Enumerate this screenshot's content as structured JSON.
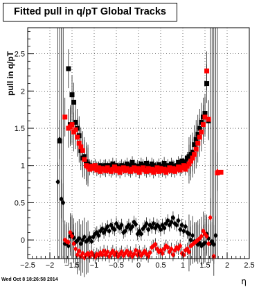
{
  "header": {
    "title": "Fitted pull in q/pT  Global Tracks",
    "datestamp": "Wed Oct  8 18:26:58 2014"
  },
  "chart_data": {
    "type": "scatter",
    "title": "Fitted pull in q/pT  Global Tracks",
    "xlabel": "η",
    "ylabel": "pull in q/pT",
    "xlim": [
      -2.5,
      2.5
    ],
    "ylim": [
      -0.25,
      2.85
    ],
    "xticks": [
      "−2.5",
      "−2",
      "−1.5",
      "−1",
      "−0.5",
      "0",
      "0.5",
      "1",
      "1.5",
      "2",
      "2.5"
    ],
    "yticks": [
      "0",
      "0.5",
      "1",
      "1.5",
      "2",
      "2.5"
    ],
    "grid": true,
    "colors": {
      "black": "#000000",
      "red": "#ff0000"
    },
    "series": [
      {
        "marker": "square",
        "color": "black",
        "x": [
          -1.58,
          -1.54,
          -1.5,
          -1.46,
          -1.42,
          -1.38,
          -1.34,
          -1.3,
          -1.26,
          -1.22,
          -1.18,
          -1.14,
          -1.1,
          -1.06,
          -1.02,
          -0.98,
          -0.94,
          -0.9,
          -0.86,
          -0.82,
          -0.78,
          -0.74,
          -0.7,
          -0.66,
          -0.62,
          -0.58,
          -0.54,
          -0.5,
          -0.46,
          -0.42,
          -0.38,
          -0.34,
          -0.3,
          -0.26,
          -0.22,
          -0.18,
          -0.14,
          -0.1,
          -0.06,
          -0.02,
          0.02,
          0.06,
          0.1,
          0.14,
          0.18,
          0.22,
          0.26,
          0.3,
          0.34,
          0.38,
          0.42,
          0.46,
          0.5,
          0.54,
          0.58,
          0.62,
          0.66,
          0.7,
          0.74,
          0.78,
          0.82,
          0.86,
          0.9,
          0.94,
          0.98,
          1.02,
          1.06,
          1.1,
          1.14,
          1.18,
          1.22,
          1.26,
          1.3,
          1.34,
          1.38,
          1.42,
          1.46,
          1.5,
          1.54,
          1.58
        ],
        "y": [
          2.3,
          1.55,
          1.95,
          1.85,
          1.58,
          1.5,
          1.4,
          1.2,
          1.1,
          1.12,
          1.05,
          1.02,
          1.0,
          0.99,
          0.98,
          1.0,
          0.97,
          0.96,
          1.0,
          0.95,
          0.99,
          1.0,
          0.97,
          1.0,
          0.98,
          1.02,
          0.96,
          1.0,
          0.94,
          0.98,
          1.0,
          0.97,
          0.99,
          1.02,
          0.96,
          1.0,
          1.04,
          1.0,
          0.97,
          0.99,
          0.98,
          1.02,
          1.0,
          0.96,
          1.03,
          0.99,
          0.97,
          1.02,
          1.0,
          0.96,
          0.98,
          1.01,
          0.95,
          0.99,
          1.03,
          0.96,
          1.0,
          0.97,
          1.02,
          0.99,
          0.98,
          1.0,
          1.04,
          1.01,
          1.06,
          1.02,
          1.05,
          1.1,
          1.12,
          1.15,
          1.18,
          1.28,
          1.35,
          1.42,
          1.5,
          1.58,
          1.65,
          1.7,
          2.1,
          1.6
        ]
      },
      {
        "marker": "square",
        "color": "red",
        "x": [
          -1.66,
          -1.58,
          -1.54,
          -1.5,
          -1.46,
          -1.42,
          -1.38,
          -1.34,
          -1.3,
          -1.26,
          -1.22,
          -1.18,
          -1.14,
          -1.1,
          -1.06,
          -1.02,
          -0.98,
          -0.94,
          -0.9,
          -0.86,
          -0.82,
          -0.78,
          -0.74,
          -0.7,
          -0.66,
          -0.62,
          -0.58,
          -0.54,
          -0.5,
          -0.46,
          -0.42,
          -0.38,
          -0.34,
          -0.3,
          -0.26,
          -0.22,
          -0.18,
          -0.14,
          -0.1,
          -0.06,
          -0.02,
          0.02,
          0.06,
          0.1,
          0.14,
          0.18,
          0.22,
          0.26,
          0.3,
          0.34,
          0.38,
          0.42,
          0.46,
          0.5,
          0.54,
          0.58,
          0.62,
          0.66,
          0.7,
          0.74,
          0.78,
          0.82,
          0.86,
          0.9,
          0.94,
          0.98,
          1.02,
          1.06,
          1.1,
          1.14,
          1.18,
          1.22,
          1.26,
          1.3,
          1.34,
          1.38,
          1.42,
          1.46,
          1.5,
          1.54,
          1.58
        ],
        "y": [
          1.65,
          1.5,
          1.52,
          1.55,
          1.45,
          1.48,
          1.38,
          1.3,
          1.25,
          1.2,
          1.08,
          1.0,
          0.98,
          0.95,
          0.99,
          0.96,
          1.0,
          0.94,
          0.97,
          0.92,
          0.96,
          0.95,
          0.93,
          0.97,
          0.94,
          0.92,
          0.95,
          0.98,
          0.93,
          0.96,
          0.91,
          0.95,
          0.97,
          0.93,
          0.96,
          0.94,
          0.92,
          0.95,
          0.97,
          0.93,
          0.96,
          0.91,
          0.95,
          0.97,
          0.94,
          0.92,
          0.96,
          0.93,
          0.95,
          0.91,
          0.94,
          0.97,
          0.92,
          0.96,
          0.93,
          0.95,
          0.91,
          0.94,
          0.97,
          0.93,
          0.96,
          0.92,
          0.95,
          0.98,
          0.94,
          0.97,
          1.0,
          0.95,
          0.99,
          1.02,
          1.06,
          1.1,
          1.15,
          1.22,
          1.3,
          1.38,
          1.45,
          1.55,
          1.65,
          2.27,
          1.62
        ]
      },
      {
        "marker": "diamond",
        "color": "black",
        "x": [
          -1.82,
          -1.78,
          -1.74,
          -1.7,
          -1.66,
          -1.62,
          -1.58,
          -1.54,
          -1.5,
          -1.46,
          -1.42,
          -1.38,
          -1.34,
          -1.3,
          -1.26,
          -1.22,
          -1.18,
          -1.14,
          -1.1,
          -1.06,
          -1.02,
          -0.98,
          -0.94,
          -0.9,
          -0.86,
          -0.82,
          -0.78,
          -0.74,
          -0.7,
          -0.66,
          -0.62,
          -0.58,
          -0.54,
          -0.5,
          -0.46,
          -0.42,
          -0.38,
          -0.34,
          -0.3,
          -0.26,
          -0.22,
          -0.18,
          -0.14,
          -0.1,
          -0.06,
          -0.02,
          0.02,
          0.06,
          0.1,
          0.14,
          0.18,
          0.22,
          0.26,
          0.3,
          0.34,
          0.38,
          0.42,
          0.46,
          0.5,
          0.54,
          0.58,
          0.62,
          0.66,
          0.7,
          0.74,
          0.78,
          0.82,
          0.86,
          0.9,
          0.94,
          0.98,
          1.02,
          1.06,
          1.1,
          1.14,
          1.18,
          1.22,
          1.26,
          1.3,
          1.34,
          1.38,
          1.42,
          1.46,
          1.5,
          1.54,
          1.58,
          1.62,
          1.66,
          1.7,
          1.74
        ],
        "y": [
          0.78,
          1.35,
          0.55,
          0.5,
          -0.05,
          -0.05,
          -0.08,
          0.05,
          0.08,
          0.03,
          -0.03,
          -0.01,
          0.02,
          -0.05,
          0.0,
          0.04,
          -0.02,
          0.0,
          0.03,
          -0.02,
          0.04,
          0.08,
          0.1,
          0.06,
          0.12,
          0.15,
          0.1,
          0.14,
          0.18,
          0.12,
          0.2,
          0.16,
          0.14,
          0.22,
          0.18,
          0.16,
          0.2,
          0.1,
          0.12,
          0.17,
          0.2,
          0.15,
          0.18,
          0.24,
          0.21,
          0.08,
          0.12,
          0.08,
          0.15,
          0.18,
          0.22,
          0.14,
          0.2,
          0.17,
          0.22,
          0.16,
          0.2,
          0.18,
          0.14,
          0.2,
          0.16,
          0.22,
          0.26,
          0.2,
          0.24,
          0.3,
          0.22,
          0.2,
          0.26,
          0.14,
          0.2,
          0.12,
          0.18,
          0.1,
          0.08,
          0.0,
          0.06,
          -0.02,
          -0.03,
          -0.06,
          -0.04,
          -0.08,
          -0.06,
          -0.04,
          0.08,
          0.02,
          -0.05,
          -0.02,
          -0.06,
          0.06
        ]
      },
      {
        "marker": "diamond",
        "color": "red",
        "x": [
          -1.66,
          -1.62,
          -1.58,
          -1.54,
          -1.5,
          -1.46,
          -1.42,
          -1.38,
          -1.34,
          -1.3,
          -1.26,
          -1.22,
          -1.18,
          -1.14,
          -1.1,
          -1.06,
          -1.02,
          -0.98,
          -0.94,
          -0.9,
          -0.86,
          -0.82,
          -0.78,
          -0.74,
          -0.7,
          -0.66,
          -0.62,
          -0.58,
          -0.54,
          -0.5,
          -0.46,
          -0.42,
          -0.38,
          -0.34,
          -0.3,
          -0.26,
          -0.22,
          -0.18,
          -0.14,
          -0.1,
          -0.06,
          -0.02,
          0.02,
          0.06,
          0.1,
          0.14,
          0.18,
          0.22,
          0.26,
          0.3,
          0.34,
          0.38,
          0.42,
          0.46,
          0.5,
          0.54,
          0.58,
          0.62,
          0.66,
          0.7,
          0.74,
          0.78,
          0.82,
          0.86,
          0.9,
          0.94,
          0.98,
          1.02,
          1.06,
          1.1,
          1.14,
          1.18,
          1.22,
          1.26,
          1.3,
          1.34,
          1.38,
          1.42,
          1.46,
          1.5,
          1.54,
          1.58,
          1.62,
          1.7,
          1.78
        ],
        "y": [
          0.0,
          -0.02,
          -0.03,
          0.1,
          0.05,
          -0.05,
          -0.12,
          -0.2,
          -0.15,
          -0.22,
          -0.18,
          -0.24,
          -0.2,
          -0.18,
          -0.22,
          -0.17,
          -0.2,
          -0.23,
          -0.19,
          -0.21,
          -0.17,
          -0.2,
          -0.15,
          -0.2,
          -0.16,
          -0.22,
          -0.18,
          -0.15,
          -0.2,
          -0.17,
          -0.22,
          -0.19,
          -0.16,
          -0.21,
          -0.18,
          -0.15,
          -0.2,
          -0.17,
          -0.22,
          -0.19,
          -0.14,
          -0.2,
          -0.16,
          -0.21,
          -0.18,
          -0.15,
          -0.19,
          -0.22,
          -0.17,
          -0.1,
          -0.08,
          -0.06,
          -0.12,
          -0.16,
          -0.14,
          -0.18,
          -0.12,
          -0.08,
          -0.1,
          -0.16,
          -0.12,
          -0.2,
          -0.14,
          -0.1,
          -0.12,
          -0.08,
          -0.18,
          -0.2,
          -0.14,
          -0.12,
          -0.16,
          -0.08,
          -0.06,
          -0.04,
          -0.02,
          0.0,
          0.02,
          0.05,
          0.12,
          0.08,
          0.05,
          -0.05,
          0.3,
          -0.22,
          0.92
        ]
      }
    ],
    "extra_points": [
      {
        "marker": "square",
        "color": "black",
        "x": -1.78,
        "y": 1.33
      },
      {
        "marker": "square",
        "color": "red",
        "x": 1.78,
        "y": 0.9
      },
      {
        "marker": "square",
        "color": "red",
        "x": 1.86,
        "y": 0.91
      }
    ]
  }
}
